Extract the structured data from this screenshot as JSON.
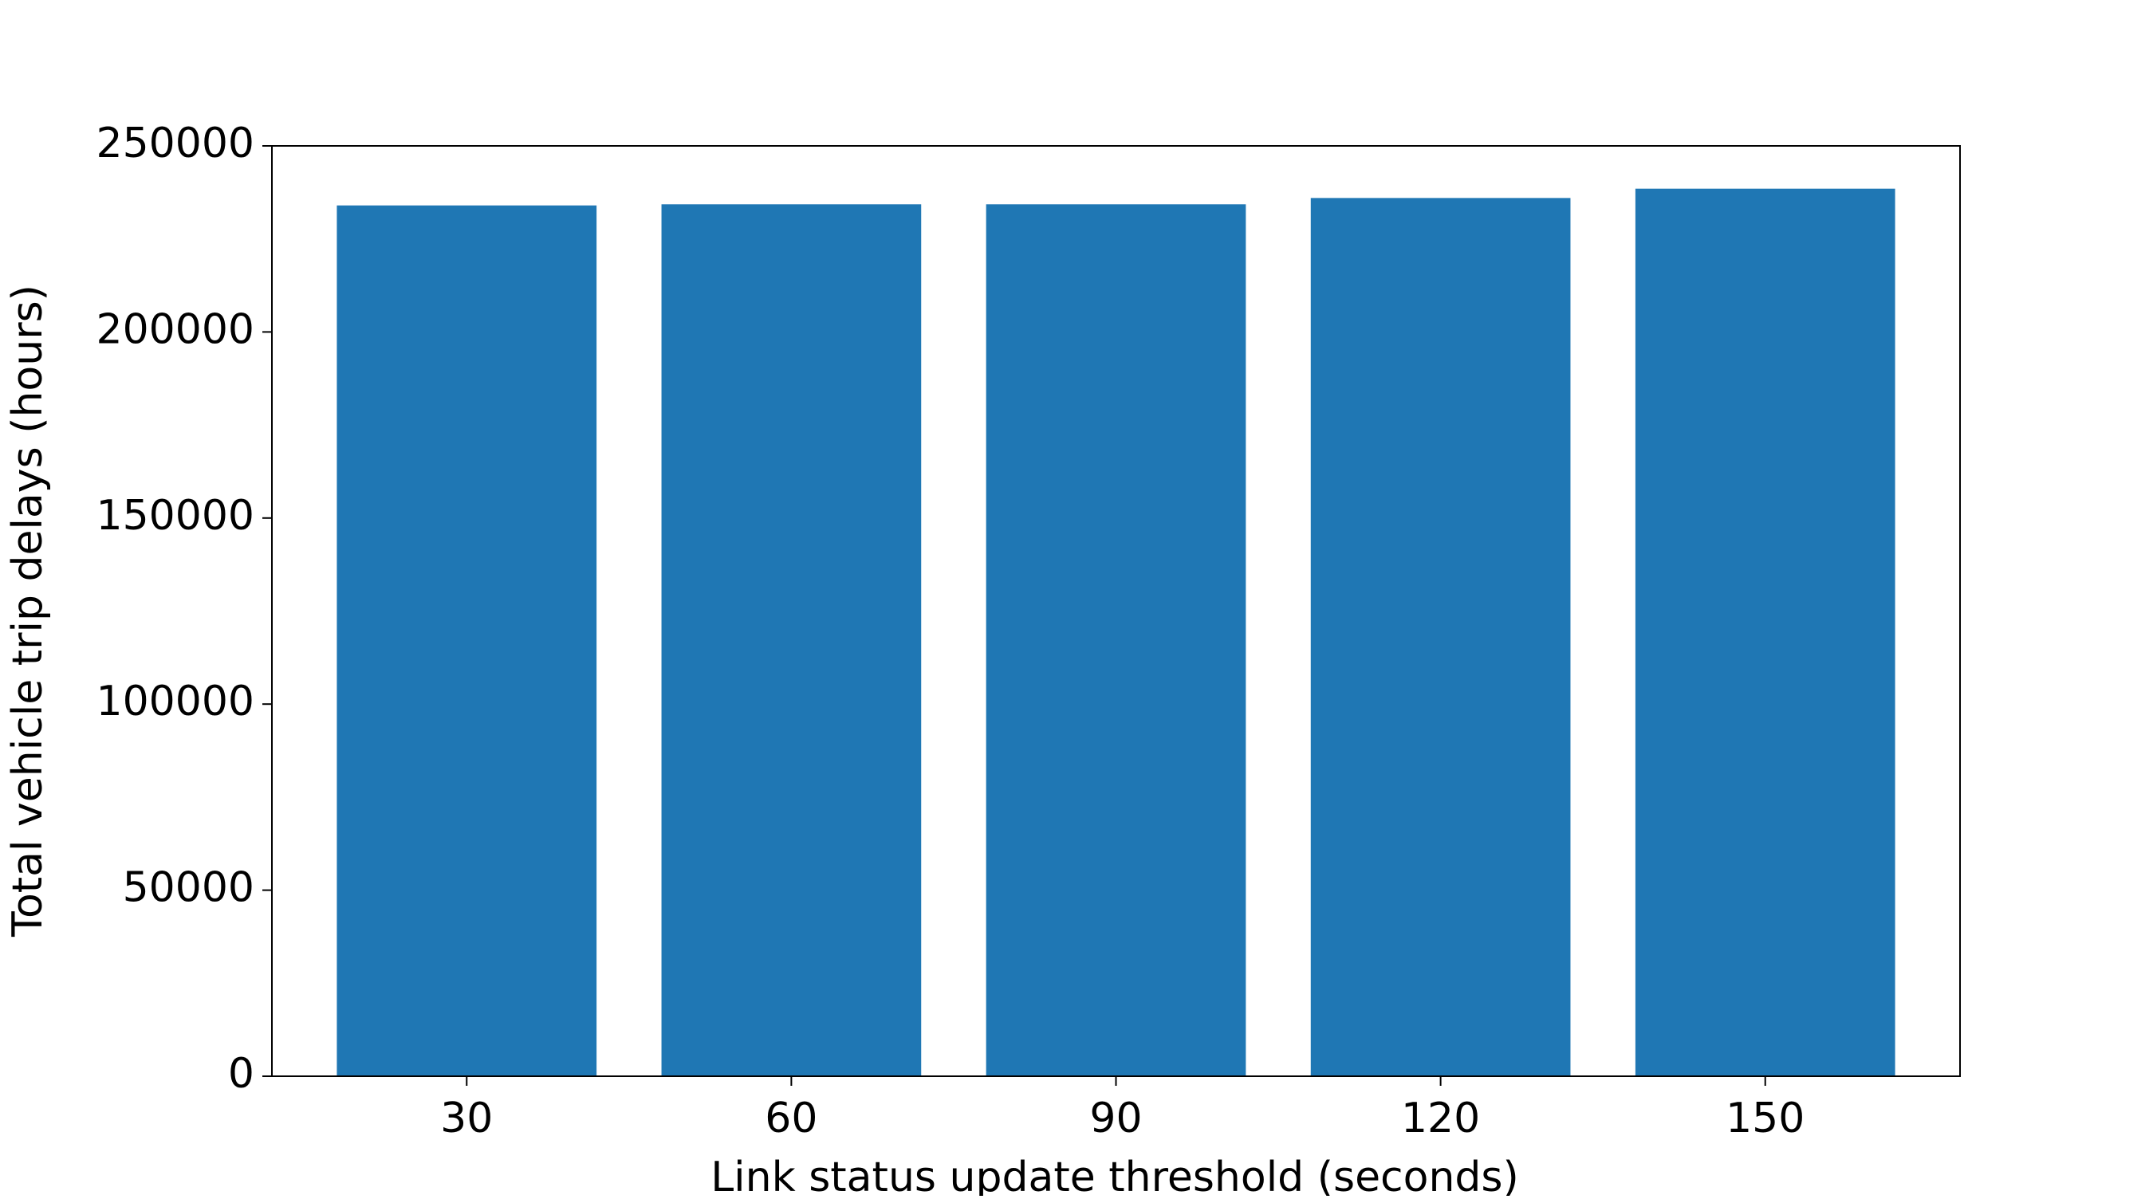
{
  "chart_data": {
    "type": "bar",
    "xlabel": "Link status update threshold (seconds)",
    "ylabel": "Total vehicle trip delays (hours)",
    "categories": [
      "30",
      "60",
      "90",
      "120",
      "150"
    ],
    "values": [
      234000,
      234300,
      234300,
      236000,
      238500
    ],
    "color": "#1f77b4",
    "ylim": [
      0,
      250000
    ],
    "yticks": [
      0,
      50000,
      100000,
      150000,
      200000,
      250000
    ],
    "grid": false
  }
}
